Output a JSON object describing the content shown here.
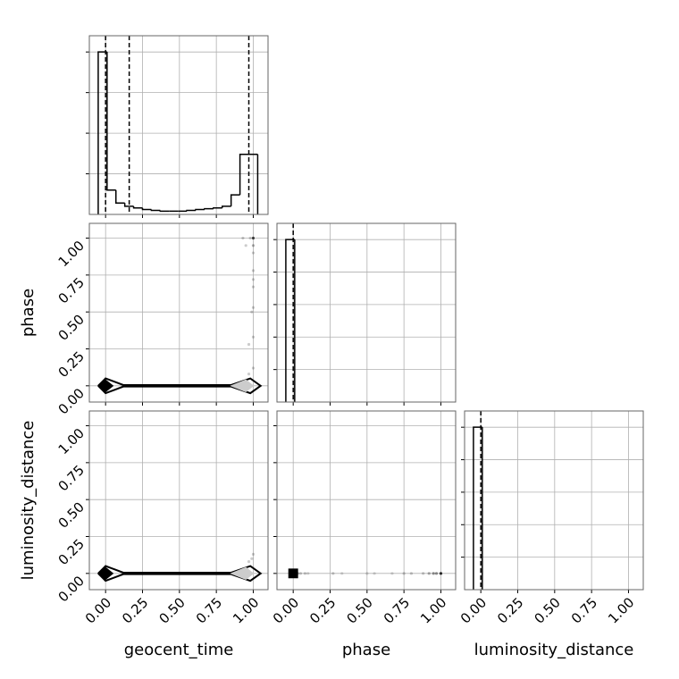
{
  "chart_data": [
    {
      "type": "histogram",
      "color": "#000000",
      "grid": true,
      "bins": [
        -0.05,
        0.01,
        0.07,
        0.13,
        0.19,
        0.25,
        0.31,
        0.37,
        0.43,
        0.49,
        0.55,
        0.61,
        0.67,
        0.73,
        0.79,
        0.85,
        0.91,
        0.97,
        1.03
      ],
      "counts": [
        1.0,
        0.15,
        0.07,
        0.05,
        0.04,
        0.03,
        0.025,
        0.02,
        0.02,
        0.02,
        0.025,
        0.03,
        0.035,
        0.04,
        0.05,
        0.12,
        0.37,
        0.37
      ],
      "quantiles": [
        0.0,
        0.16,
        0.97
      ],
      "xlim": [
        -0.11,
        1.1
      ],
      "ylim": [
        0,
        1.1
      ],
      "xticks": [
        0,
        0.25,
        0.5,
        0.75,
        1
      ],
      "yticks": [
        0.25,
        0.5,
        0.75,
        1
      ]
    },
    {
      "type": "scatter",
      "color": "#000000",
      "grid": true,
      "ylabel": "phase",
      "x": [
        0.93,
        0.98,
        1.0,
        1.0,
        0.95,
        1.0,
        1.0,
        1.0,
        1.0,
        1.0,
        0.99,
        1.0,
        0.97,
        1.0,
        0.97,
        0.2,
        0.35,
        0.45,
        0.6
      ],
      "y": [
        1.0,
        1.0,
        1.0,
        0.95,
        0.95,
        0.9,
        0.78,
        0.72,
        0.67,
        0.53,
        0.5,
        0.33,
        0.28,
        0.12,
        0.08,
        0,
        0,
        0,
        0
      ],
      "weights": [
        0.2,
        0.2,
        0.7,
        0.3,
        0.2,
        0.2,
        0.2,
        0.2,
        0.2,
        0.2,
        0.2,
        0.2,
        0.2,
        0.2,
        0.2,
        0.3,
        0.3,
        0.3,
        0.3
      ],
      "contours": [
        {
          "fill": "none",
          "x": [
            -0.05,
            0.0,
            0.12,
            0.85,
            0.98,
            1.05,
            0.98,
            0.85,
            0.12,
            0.0,
            -0.05
          ],
          "y": [
            0,
            0.05,
            0.005,
            0.005,
            0.05,
            0,
            -0.05,
            -0.005,
            -0.005,
            -0.05,
            0
          ]
        },
        {
          "fill": "#000000",
          "x": [
            -0.05,
            0.0,
            0.05,
            0.0
          ],
          "y": [
            0,
            0.04,
            0,
            -0.04
          ]
        },
        {
          "fill": "#cccccc",
          "x": [
            0.85,
            0.95,
            1.0,
            0.95
          ],
          "y": [
            0,
            0.04,
            0,
            -0.04
          ]
        }
      ],
      "xlim": [
        -0.11,
        1.1
      ],
      "ylim": [
        -0.11,
        1.1
      ],
      "xticks": [
        0,
        0.25,
        0.5,
        0.75,
        1
      ],
      "yticks": [
        {
          "value": 0,
          "label": "0.00"
        },
        {
          "value": 0.25,
          "label": "0.25"
        },
        {
          "value": 0.5,
          "label": "0.50"
        },
        {
          "value": 0.75,
          "label": "0.75"
        },
        {
          "value": 1,
          "label": "1.00"
        }
      ]
    },
    {
      "type": "histogram",
      "color": "#000000",
      "grid": true,
      "bins": [
        -0.05,
        0.01
      ],
      "counts": [
        1.0
      ],
      "quantiles": [
        0.0
      ],
      "xlim": [
        -0.11,
        1.1
      ],
      "ylim": [
        0,
        1.1
      ],
      "xticks": [
        0,
        0.25,
        0.5,
        0.75,
        1
      ],
      "yticks": [
        0.2,
        0.4,
        0.6,
        0.8,
        1.0
      ]
    },
    {
      "type": "scatter",
      "color": "#000000",
      "grid": true,
      "ylabel": "luminosity_distance",
      "xlabel": "geocent_time",
      "x": [
        0.99,
        0.97,
        1.0,
        0.2,
        0.45
      ],
      "y": [
        0.1,
        0.08,
        0.13,
        0,
        0
      ],
      "weights": [
        0.2,
        0.2,
        0.2,
        0.3,
        0.3
      ],
      "contours": [
        {
          "fill": "none",
          "x": [
            -0.05,
            0.0,
            0.12,
            0.85,
            0.98,
            1.05,
            0.98,
            0.85,
            0.12,
            0.0,
            -0.05
          ],
          "y": [
            0,
            0.05,
            0.005,
            0.005,
            0.05,
            0,
            -0.05,
            -0.005,
            -0.005,
            -0.05,
            0
          ]
        },
        {
          "fill": "#000000",
          "x": [
            -0.05,
            0.0,
            0.05,
            0.0
          ],
          "y": [
            0,
            0.04,
            0,
            -0.04
          ]
        },
        {
          "fill": "#cccccc",
          "x": [
            0.85,
            0.95,
            1.0,
            0.95
          ],
          "y": [
            0,
            0.04,
            0,
            -0.04
          ]
        }
      ],
      "xlim": [
        -0.11,
        1.1
      ],
      "ylim": [
        -0.11,
        1.1
      ],
      "xticks": [
        {
          "value": 0,
          "label": "0.00"
        },
        {
          "value": 0.25,
          "label": "0.25"
        },
        {
          "value": 0.5,
          "label": "0.50"
        },
        {
          "value": 0.75,
          "label": "0.75"
        },
        {
          "value": 1,
          "label": "1.00"
        }
      ],
      "yticks": [
        {
          "value": 0,
          "label": "0.00"
        },
        {
          "value": 0.25,
          "label": "0.25"
        },
        {
          "value": 0.5,
          "label": "0.50"
        },
        {
          "value": 0.75,
          "label": "0.75"
        },
        {
          "value": 1,
          "label": "1.00"
        }
      ]
    },
    {
      "type": "scatter",
      "color": "#000000",
      "grid": true,
      "xlabel": "phase",
      "x": [
        0.03,
        0.05,
        0.08,
        0.1,
        0.27,
        0.33,
        0.5,
        0.55,
        0.67,
        0.75,
        0.8,
        0.88,
        0.92,
        0.95,
        0.97,
        1.0
      ],
      "y": [
        0,
        0,
        0,
        0,
        0,
        0,
        0,
        0,
        0,
        0,
        0,
        0,
        0,
        0,
        0,
        0
      ],
      "weights": [
        0.3,
        0.2,
        0.2,
        0.15,
        0.2,
        0.15,
        0.15,
        0.15,
        0.15,
        0.2,
        0.2,
        0.2,
        0.3,
        0.4,
        0.4,
        0.8
      ],
      "contours": [
        {
          "fill": "#000000",
          "x": [
            -0.03,
            0.03,
            0.03,
            -0.03
          ],
          "y": [
            -0.03,
            -0.03,
            0.03,
            0.03
          ]
        }
      ],
      "xlim": [
        -0.11,
        1.1
      ],
      "ylim": [
        -0.11,
        1.1
      ],
      "xticks": [
        {
          "value": 0,
          "label": "0.00"
        },
        {
          "value": 0.25,
          "label": "0.25"
        },
        {
          "value": 0.5,
          "label": "0.50"
        },
        {
          "value": 0.75,
          "label": "0.75"
        },
        {
          "value": 1,
          "label": "1.00"
        }
      ],
      "yticks": [
        0,
        0.25,
        0.5,
        0.75,
        1
      ]
    },
    {
      "type": "histogram",
      "color": "#000000",
      "grid": true,
      "xlabel": "luminosity_distance",
      "bins": [
        -0.05,
        0.01
      ],
      "counts": [
        1.0
      ],
      "quantiles": [
        0.0
      ],
      "xlim": [
        -0.11,
        1.1
      ],
      "ylim": [
        0,
        1.1
      ],
      "xticks": [
        {
          "value": 0,
          "label": "0.00"
        },
        {
          "value": 0.25,
          "label": "0.25"
        },
        {
          "value": 0.5,
          "label": "0.50"
        },
        {
          "value": 0.75,
          "label": "0.75"
        },
        {
          "value": 1,
          "label": "1.00"
        }
      ],
      "yticks": [
        0.2,
        0.4,
        0.6,
        0.8,
        1.0
      ]
    }
  ]
}
